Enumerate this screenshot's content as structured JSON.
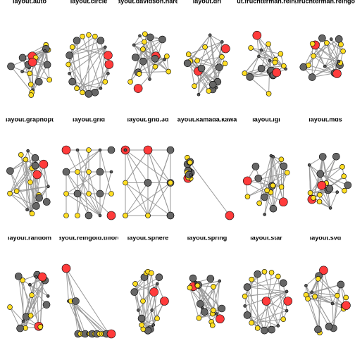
{
  "panels": [
    {
      "title": "layout.auto"
    },
    {
      "title": "layout.circle"
    },
    {
      "title": "layout.davidson.harel"
    },
    {
      "title": "layout.drl"
    },
    {
      "title": "layout.fruchterman.reingold"
    },
    {
      "title": "layout.fruchterman.reingold.grid"
    },
    {
      "title": "layout.graphopt"
    },
    {
      "title": "layout.grid"
    },
    {
      "title": "layout.grid.3d"
    },
    {
      "title": "layout.kamada.kawai"
    },
    {
      "title": "layout.lgl"
    },
    {
      "title": "layout.mds"
    },
    {
      "title": "layout.random"
    },
    {
      "title": "layout.reingold.tilford"
    },
    {
      "title": "layout.sphere"
    },
    {
      "title": "layout.spring"
    },
    {
      "title": "layout.star"
    },
    {
      "title": "layout.svd"
    }
  ]
}
